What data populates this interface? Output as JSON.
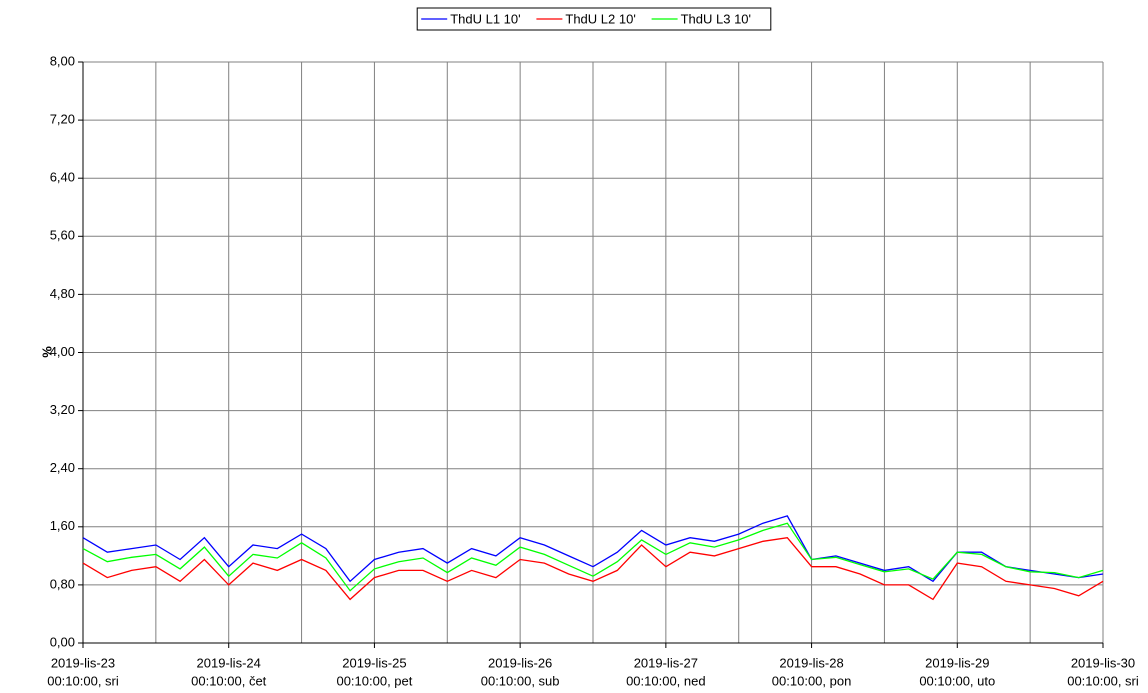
{
  "chart_data": {
    "type": "line",
    "y_label": "%",
    "x": [
      "2019-lis-23 00:10:00",
      "2019-lis-23 04:10:00",
      "2019-lis-23 08:10:00",
      "2019-lis-23 12:10:00",
      "2019-lis-23 16:10:00",
      "2019-lis-23 20:10:00",
      "2019-lis-24 00:10:00",
      "2019-lis-24 04:10:00",
      "2019-lis-24 08:10:00",
      "2019-lis-24 12:10:00",
      "2019-lis-24 16:10:00",
      "2019-lis-24 20:10:00",
      "2019-lis-25 00:10:00",
      "2019-lis-25 04:10:00",
      "2019-lis-25 08:10:00",
      "2019-lis-25 12:10:00",
      "2019-lis-25 16:10:00",
      "2019-lis-25 20:10:00",
      "2019-lis-26 00:10:00",
      "2019-lis-26 04:10:00",
      "2019-lis-26 08:10:00",
      "2019-lis-26 12:10:00",
      "2019-lis-26 16:10:00",
      "2019-lis-26 20:10:00",
      "2019-lis-27 00:10:00",
      "2019-lis-27 04:10:00",
      "2019-lis-27 08:10:00",
      "2019-lis-27 12:10:00",
      "2019-lis-27 16:10:00",
      "2019-lis-27 20:10:00",
      "2019-lis-28 00:10:00",
      "2019-lis-28 04:10:00",
      "2019-lis-28 08:10:00",
      "2019-lis-28 12:10:00",
      "2019-lis-28 16:10:00",
      "2019-lis-28 20:10:00",
      "2019-lis-29 00:10:00",
      "2019-lis-29 04:10:00",
      "2019-lis-29 08:10:00",
      "2019-lis-29 12:10:00",
      "2019-lis-29 16:10:00",
      "2019-lis-29 20:10:00",
      "2019-lis-30 00:10:00"
    ],
    "xticks": [
      {
        "value": "2019-lis-23 00:10:00",
        "label": [
          "2019-lis-23",
          "00:10:00, sri"
        ]
      },
      {
        "value": "2019-lis-24 00:10:00",
        "label": [
          "2019-lis-24",
          "00:10:00, čet"
        ]
      },
      {
        "value": "2019-lis-25 00:10:00",
        "label": [
          "2019-lis-25",
          "00:10:00, pet"
        ]
      },
      {
        "value": "2019-lis-26 00:10:00",
        "label": [
          "2019-lis-26",
          "00:10:00, sub"
        ]
      },
      {
        "value": "2019-lis-27 00:10:00",
        "label": [
          "2019-lis-27",
          "00:10:00, ned"
        ]
      },
      {
        "value": "2019-lis-28 00:10:00",
        "label": [
          "2019-lis-28",
          "00:10:00, pon"
        ]
      },
      {
        "value": "2019-lis-29 00:10:00",
        "label": [
          "2019-lis-29",
          "00:10:00, uto"
        ]
      },
      {
        "value": "2019-lis-30 00:10:00",
        "label": [
          "2019-lis-30",
          "00:10:00, sri"
        ]
      }
    ],
    "xgrid_minor": [
      "2019-lis-23 12:10:00",
      "2019-lis-24 12:10:00",
      "2019-lis-25 12:10:00",
      "2019-lis-26 12:10:00",
      "2019-lis-27 12:10:00",
      "2019-lis-28 12:10:00",
      "2019-lis-29 12:10:00"
    ],
    "ylim": [
      0,
      8
    ],
    "yticks": [
      {
        "value": 0,
        "label": "0,00"
      },
      {
        "value": 0.8,
        "label": "0,80"
      },
      {
        "value": 1.6,
        "label": "1,60"
      },
      {
        "value": 2.4,
        "label": "2,40"
      },
      {
        "value": 3.2,
        "label": "3,20"
      },
      {
        "value": 4,
        "label": "4,00"
      },
      {
        "value": 4.8,
        "label": "4,80"
      },
      {
        "value": 5.6,
        "label": "5,60"
      },
      {
        "value": 6.4,
        "label": "6,40"
      },
      {
        "value": 7.2,
        "label": "7,20"
      },
      {
        "value": 8,
        "label": "8,00"
      }
    ],
    "grid": true,
    "legend": "top",
    "series": [
      {
        "name": "ThdU L1 10'",
        "color": "#0000ff",
        "values": [
          1.45,
          1.25,
          1.3,
          1.35,
          1.15,
          1.45,
          1.05,
          1.35,
          1.3,
          1.5,
          1.3,
          0.85,
          1.15,
          1.25,
          1.3,
          1.1,
          1.3,
          1.2,
          1.45,
          1.35,
          1.2,
          1.05,
          1.25,
          1.55,
          1.35,
          1.45,
          1.4,
          1.5,
          1.65,
          1.75,
          1.15,
          1.2,
          1.1,
          1.0,
          1.05,
          0.85,
          1.25,
          1.25,
          1.05,
          1.0,
          0.95,
          0.9,
          0.95
        ]
      },
      {
        "name": "ThdU L2 10'",
        "color": "#ff0000",
        "values": [
          1.1,
          0.9,
          1.0,
          1.05,
          0.85,
          1.15,
          0.8,
          1.1,
          1.0,
          1.15,
          1.0,
          0.6,
          0.9,
          1.0,
          1.0,
          0.85,
          1.0,
          0.9,
          1.15,
          1.1,
          0.95,
          0.85,
          1.0,
          1.35,
          1.05,
          1.25,
          1.2,
          1.3,
          1.4,
          1.45,
          1.05,
          1.05,
          0.95,
          0.8,
          0.8,
          0.6,
          1.1,
          1.05,
          0.85,
          0.8,
          0.75,
          0.65,
          0.85
        ]
      },
      {
        "name": "ThdU L3 10'",
        "color": "#00ff00",
        "values": [
          1.3,
          1.12,
          1.18,
          1.22,
          1.02,
          1.32,
          0.92,
          1.22,
          1.17,
          1.38,
          1.17,
          0.72,
          1.02,
          1.12,
          1.17,
          0.97,
          1.17,
          1.07,
          1.32,
          1.22,
          1.07,
          0.92,
          1.12,
          1.42,
          1.22,
          1.38,
          1.32,
          1.42,
          1.55,
          1.65,
          1.15,
          1.18,
          1.08,
          0.98,
          1.02,
          0.88,
          1.25,
          1.22,
          1.05,
          0.98,
          0.97,
          0.9,
          1.0
        ]
      }
    ]
  }
}
